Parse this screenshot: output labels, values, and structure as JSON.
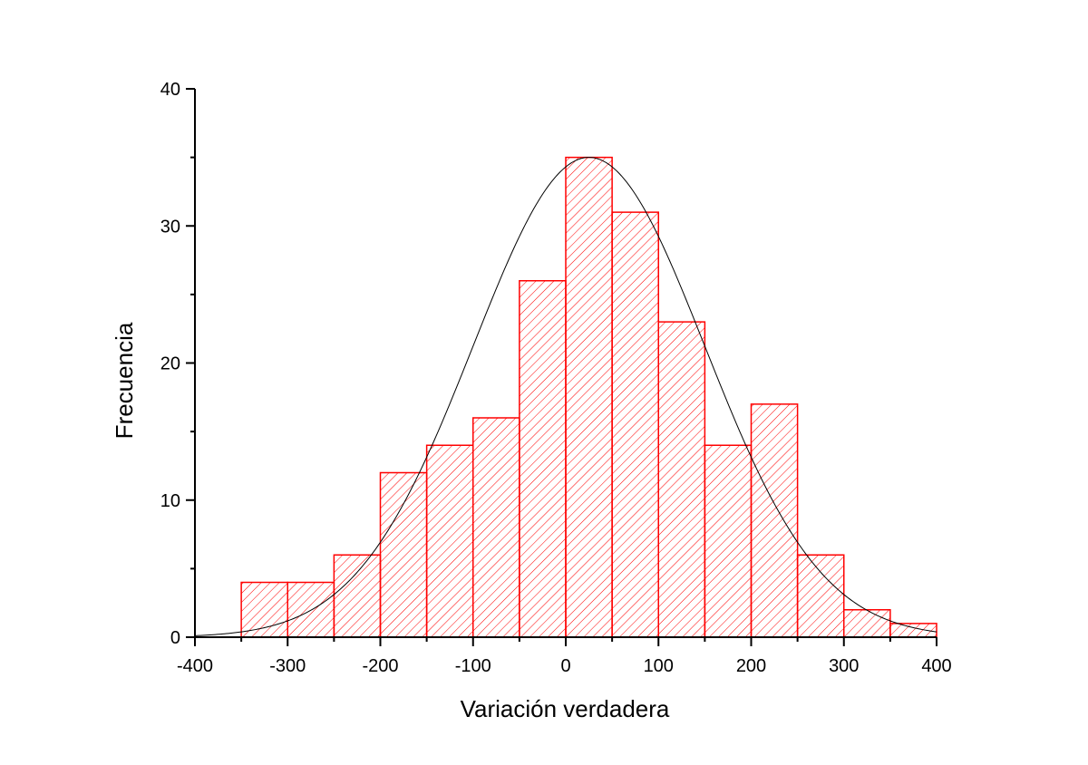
{
  "chart_data": {
    "type": "bar",
    "xlabel": "Variación verdadera",
    "ylabel": "Frecuencia",
    "xlim": [
      -400,
      400
    ],
    "ylim": [
      0,
      40
    ],
    "x_ticks": [
      "-400",
      "-300",
      "-200",
      "-100",
      "0",
      "100",
      "200",
      "300",
      "400"
    ],
    "y_ticks": [
      "0",
      "10",
      "20",
      "30",
      "40"
    ],
    "bin_width": 50,
    "bins": [
      {
        "start": -350,
        "end": -300,
        "count": 4
      },
      {
        "start": -300,
        "end": -250,
        "count": 4
      },
      {
        "start": -250,
        "end": -200,
        "count": 6
      },
      {
        "start": -200,
        "end": -150,
        "count": 12
      },
      {
        "start": -150,
        "end": -100,
        "count": 14
      },
      {
        "start": -100,
        "end": -50,
        "count": 16
      },
      {
        "start": -50,
        "end": 0,
        "count": 26
      },
      {
        "start": 0,
        "end": 50,
        "count": 35
      },
      {
        "start": 50,
        "end": 100,
        "count": 31
      },
      {
        "start": 100,
        "end": 150,
        "count": 23
      },
      {
        "start": 150,
        "end": 200,
        "count": 14
      },
      {
        "start": 200,
        "end": 250,
        "count": 17
      },
      {
        "start": 250,
        "end": 300,
        "count": 6
      },
      {
        "start": 300,
        "end": 350,
        "count": 2
      },
      {
        "start": 350,
        "end": 400,
        "count": 1
      }
    ],
    "fit_curve": {
      "type": "normal",
      "mean": 25,
      "sd": 125,
      "peak": 35
    },
    "bar_color": "#ff0000",
    "bar_fill": "hatched",
    "curve_color": "#000000",
    "grid": false
  }
}
